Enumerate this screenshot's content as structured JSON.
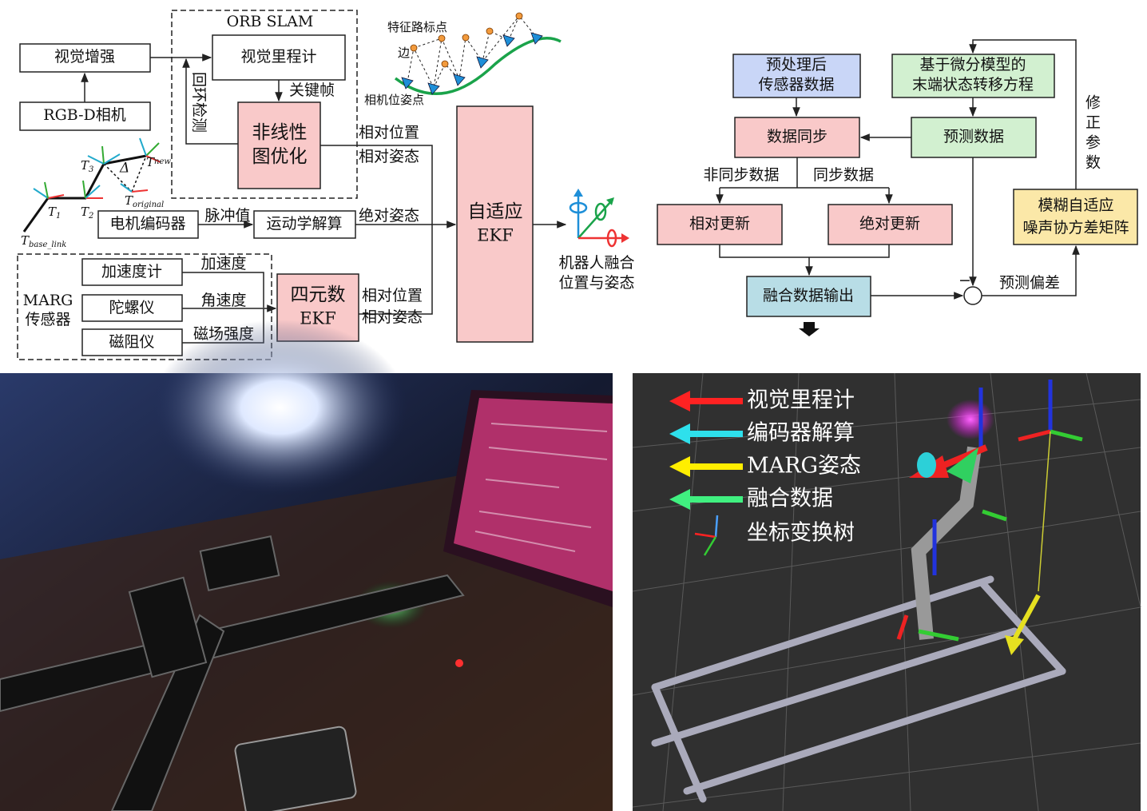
{
  "fusion_architecture": {
    "orb_slam_label": "ORB SLAM",
    "visual_enhancement": "视觉增强",
    "rgbd_camera": "RGB-D相机",
    "visual_odometry": "视觉里程计",
    "keyframe": "关键帧",
    "loop_closure": "回环检测",
    "graph_optimization": [
      "非线性",
      "图优化"
    ],
    "slam_outputs": [
      "相对位置",
      "相对姿态"
    ],
    "feature_landmark": "特征路标点",
    "edge": "边",
    "camera_pose": "相机位姿点",
    "pose_labels": [
      {
        "main": "T",
        "sub": "1"
      },
      {
        "main": "T",
        "sub": "2"
      },
      {
        "main": "T",
        "sub": "3"
      },
      {
        "main": "T",
        "sub": "new"
      },
      {
        "main": "T",
        "sub": "original"
      },
      {
        "main": "T",
        "sub": "base_link"
      }
    ],
    "delta": "Δ",
    "motor_encoder": "电机编码器",
    "pulse_value": "脉冲值",
    "kinematics": "运动学解算",
    "absolute_attitude": "绝对姿态",
    "adaptive_ekf": [
      "自适应",
      "EKF"
    ],
    "output": [
      "机器人融合",
      "位置与姿态"
    ],
    "marg_sensor": [
      "MARG",
      "传感器"
    ],
    "sensors": [
      {
        "name": "加速度计",
        "signal": "加速度"
      },
      {
        "name": "陀螺仪",
        "signal": "角速度"
      },
      {
        "name": "磁阻仪",
        "signal": "磁场强度"
      }
    ],
    "quaternion_ekf": [
      "四元数",
      "EKF"
    ],
    "marg_outputs": [
      "相对位置",
      "相对姿态"
    ]
  },
  "ekf_flow": {
    "preprocessed": [
      "预处理后",
      "传感器数据"
    ],
    "state_transition": [
      "基于微分模型的",
      "末端状态转移方程"
    ],
    "data_sync": "数据同步",
    "prediction": "预测数据",
    "async_data": "非同步数据",
    "sync_data": "同步数据",
    "relative_update": "相对更新",
    "absolute_update": "绝对更新",
    "fused_output": "融合数据输出",
    "minus_sign": "−",
    "prediction_error": "预测偏差",
    "correct_params": "修正参数",
    "fuzzy_adaptive": [
      "模糊自适应",
      "噪声协方差矩阵"
    ]
  },
  "rviz_legend": {
    "items": [
      "视觉里程计",
      "编码器解算",
      "MARG姿态",
      "融合数据",
      "坐标变换树"
    ]
  }
}
